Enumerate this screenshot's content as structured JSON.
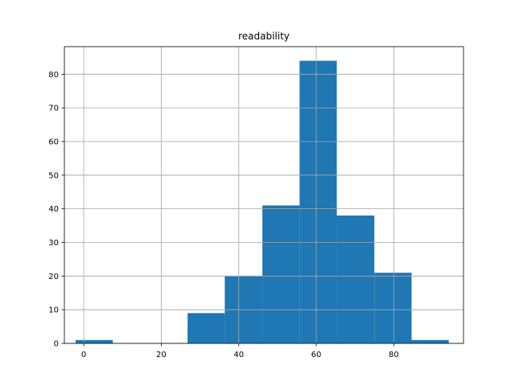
{
  "chart_data": {
    "type": "bar",
    "title": "readability",
    "xlabel": "",
    "ylabel": "",
    "xlim": [
      -5,
      98
    ],
    "ylim": [
      0,
      88.2
    ],
    "grid": true,
    "bar_color": "#1f77b4",
    "grid_color": "#b0b0b0",
    "x_ticks": [
      {
        "value": 0,
        "label": "0"
      },
      {
        "value": 20,
        "label": "20"
      },
      {
        "value": 40,
        "label": "40"
      },
      {
        "value": 60,
        "label": "60"
      },
      {
        "value": 80,
        "label": "80"
      }
    ],
    "y_ticks": [
      {
        "value": 0,
        "label": "0"
      },
      {
        "value": 10,
        "label": "10"
      },
      {
        "value": 20,
        "label": "20"
      },
      {
        "value": 30,
        "label": "30"
      },
      {
        "value": 40,
        "label": "40"
      },
      {
        "value": 50,
        "label": "50"
      },
      {
        "value": 60,
        "label": "60"
      },
      {
        "value": 70,
        "label": "70"
      },
      {
        "value": 80,
        "label": "80"
      }
    ],
    "bins": [
      {
        "start": -2.1,
        "end": 7.5,
        "count": 1
      },
      {
        "start": 7.5,
        "end": 17.2,
        "count": 0
      },
      {
        "start": 17.2,
        "end": 26.8,
        "count": 0
      },
      {
        "start": 26.8,
        "end": 36.4,
        "count": 9
      },
      {
        "start": 36.4,
        "end": 46.1,
        "count": 20
      },
      {
        "start": 46.1,
        "end": 55.7,
        "count": 41
      },
      {
        "start": 55.7,
        "end": 65.3,
        "count": 84
      },
      {
        "start": 65.3,
        "end": 75.0,
        "count": 38
      },
      {
        "start": 75.0,
        "end": 84.6,
        "count": 21
      },
      {
        "start": 84.6,
        "end": 94.2,
        "count": 1
      }
    ]
  }
}
